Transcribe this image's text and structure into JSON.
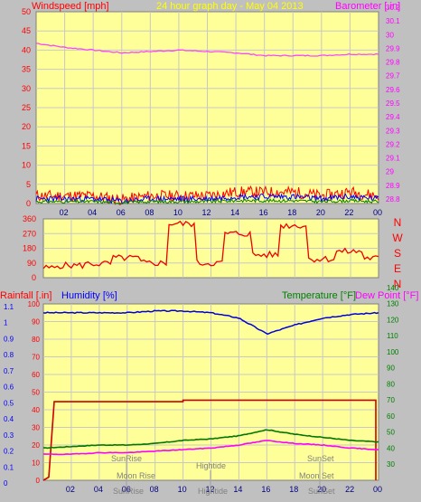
{
  "header": {
    "left_title": "Windspeed [mph]",
    "center_title": "24 hour graph day - May 04 2013",
    "right_title": "Barometer [.in]"
  },
  "colors": {
    "background": "#c0c0c0",
    "plot_bg": "#ffff99",
    "windspeed_label": "#ff0000",
    "barometer_label": "#ff00ff",
    "center_title": "#ffff00",
    "rain_label": "#ff0000",
    "humidity_label": "#0000ff",
    "temp_label": "#008000",
    "dew_label": "#ff00ff",
    "grid": "#c8c8c8",
    "axis_text_dark": "#000000"
  },
  "x_ticks": [
    "02",
    "04",
    "06",
    "08",
    "10",
    "12",
    "14",
    "16",
    "18",
    "20",
    "22",
    "00"
  ],
  "panel_wind": {
    "y_ticks_left": [
      "0",
      "5",
      "10",
      "15",
      "20",
      "25",
      "30",
      "35",
      "40",
      "45",
      "50"
    ],
    "y_ticks_right": [
      "28.8",
      "28.9",
      "29",
      "29.1",
      "29.2",
      "29.3",
      "29.4",
      "29.5",
      "29.6",
      "29.7",
      "29.8",
      "29.9",
      "30",
      "30.1",
      "30.2"
    ]
  },
  "panel_dir": {
    "y_ticks": [
      "0",
      "90",
      "180",
      "270",
      "360"
    ],
    "compass": [
      "N",
      "W",
      "S",
      "E",
      "N"
    ]
  },
  "panel_bottom": {
    "left_label": "Rainfall [.in]",
    "center_left_label": "Humidity [%]",
    "temp_label": "Temperature [°F]",
    "dew_label": "Dew Point [°F]",
    "rain_ticks": [
      "0",
      "0.1",
      "0.2",
      "0.3",
      "0.4",
      "0.5",
      "0.6",
      "0.7",
      "0.8",
      "0.9",
      "1",
      "1.1"
    ],
    "humidity_ticks": [
      "0",
      "10",
      "20",
      "30",
      "40",
      "50",
      "60",
      "70",
      "80",
      "90",
      "100"
    ],
    "temp_ticks": [
      "30",
      "40",
      "50",
      "60",
      "70",
      "80",
      "90",
      "100",
      "110",
      "120",
      "130",
      "140"
    ],
    "annotations": {
      "sunrise": "SunRise",
      "moonrise": "Moon Rise",
      "hightide": "Hightide",
      "sunset": "SunSet",
      "moonset": "Moon Set"
    },
    "axis_overlaps": {
      "sunrise_tick": "SunRise",
      "hightide_tick": "Hightide",
      "sunset_tick": "SunSet"
    }
  },
  "chart_data": [
    {
      "type": "line",
      "title": "24 hour graph day - May 04 2013",
      "ylabel": "Windspeed [mph]",
      "y2label": "Barometer [.in]",
      "x": [
        "00",
        "02",
        "04",
        "06",
        "08",
        "10",
        "12",
        "14",
        "16",
        "18",
        "20",
        "22",
        "00"
      ],
      "ylim": [
        0,
        50
      ],
      "y2lim": [
        28.8,
        30.2
      ],
      "series": [
        {
          "name": "Barometer [.in]",
          "axis": "right",
          "values": [
            29.97,
            29.94,
            29.92,
            29.9,
            29.91,
            29.92,
            29.91,
            29.9,
            29.88,
            29.88,
            29.88,
            29.89,
            29.89
          ]
        },
        {
          "name": "Windspeed [mph]",
          "axis": "left",
          "values": [
            2,
            2,
            2,
            1,
            2,
            2,
            2,
            3,
            3,
            3,
            2,
            3,
            2
          ]
        }
      ]
    },
    {
      "type": "line",
      "ylim": [
        0,
        360
      ],
      "x": [
        "00",
        "02",
        "04",
        "06",
        "08",
        "10",
        "12",
        "14",
        "16",
        "18",
        "20",
        "22",
        "00"
      ],
      "series": [
        {
          "name": "Wind direction",
          "values": [
            60,
            75,
            85,
            120,
            90,
            330,
            90,
            270,
            140,
            320,
            115,
            160,
            120
          ]
        }
      ]
    },
    {
      "type": "line",
      "x": [
        "00",
        "02",
        "04",
        "06",
        "08",
        "10",
        "12",
        "14",
        "16",
        "18",
        "20",
        "22",
        "00"
      ],
      "ylim": [
        0,
        1.1
      ],
      "series": [
        {
          "name": "Humidity [%]",
          "axis": "humidity",
          "values": [
            95,
            95,
            95,
            95,
            96,
            96,
            95,
            92,
            83,
            88,
            92,
            94,
            95
          ]
        },
        {
          "name": "Rainfall [.in]",
          "axis": "rain",
          "values": [
            0,
            0.49,
            0.49,
            0.49,
            0.49,
            0.5,
            0.5,
            0.5,
            0.5,
            0.5,
            0.5,
            0.5,
            0.5
          ]
        },
        {
          "name": "Temperature [°F]",
          "axis": "temp",
          "values": [
            51,
            52,
            53,
            53,
            54,
            56,
            57,
            59,
            63,
            60,
            58,
            56,
            55
          ]
        },
        {
          "name": "Dew Point [°F]",
          "axis": "temp",
          "values": [
            47,
            47,
            48,
            48,
            49,
            50,
            51,
            53,
            56,
            54,
            53,
            51,
            50
          ]
        }
      ]
    }
  ]
}
